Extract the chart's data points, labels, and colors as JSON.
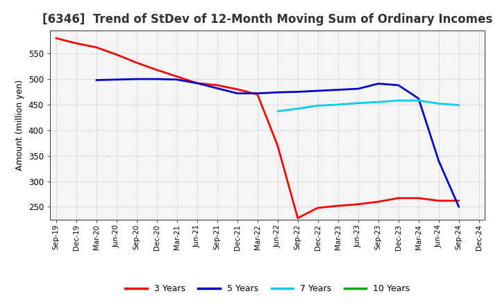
{
  "title": "[6346]  Trend of StDev of 12-Month Moving Sum of Ordinary Incomes",
  "ylabel": "Amount (million yen)",
  "ylim": [
    225,
    595
  ],
  "yticks": [
    250,
    300,
    350,
    400,
    450,
    500,
    550
  ],
  "x_labels": [
    "Sep-19",
    "Dec-19",
    "Mar-20",
    "Jun-20",
    "Sep-20",
    "Dec-20",
    "Mar-21",
    "Jun-21",
    "Sep-21",
    "Dec-21",
    "Mar-22",
    "Jun-22",
    "Sep-22",
    "Dec-22",
    "Mar-23",
    "Jun-23",
    "Sep-23",
    "Dec-23",
    "Mar-24",
    "Jun-24",
    "Sep-24",
    "Dec-24"
  ],
  "series": {
    "3 Years": {
      "color": "#ff0000",
      "data": [
        580,
        570,
        562,
        548,
        532,
        518,
        505,
        492,
        488,
        480,
        470,
        370,
        228,
        248,
        252,
        255,
        260,
        267,
        267,
        262,
        262,
        null
      ]
    },
    "5 Years": {
      "color": "#0000cc",
      "data": [
        null,
        null,
        498,
        499,
        500,
        500,
        499,
        492,
        482,
        472,
        472,
        474,
        475,
        477,
        479,
        481,
        491,
        488,
        462,
        340,
        250,
        null
      ]
    },
    "7 Years": {
      "color": "#00ccee",
      "data": [
        null,
        null,
        null,
        null,
        null,
        null,
        null,
        null,
        null,
        null,
        null,
        437,
        442,
        448,
        450,
        453,
        455,
        458,
        458,
        452,
        449,
        null
      ]
    },
    "10 Years": {
      "color": "#00aa00",
      "data": [
        null,
        null,
        null,
        null,
        null,
        null,
        null,
        null,
        null,
        null,
        null,
        null,
        null,
        null,
        null,
        null,
        null,
        null,
        null,
        null,
        null,
        null
      ]
    }
  },
  "legend_order": [
    "3 Years",
    "5 Years",
    "7 Years",
    "10 Years"
  ],
  "legend_colors": [
    "#ff0000",
    "#0000cc",
    "#00ccee",
    "#00aa00"
  ],
  "plot_bg": "#f5f5f5",
  "fig_bg": "#ffffff",
  "grid_color": "#999999",
  "title_fontsize": 12,
  "linewidth": 2.0
}
